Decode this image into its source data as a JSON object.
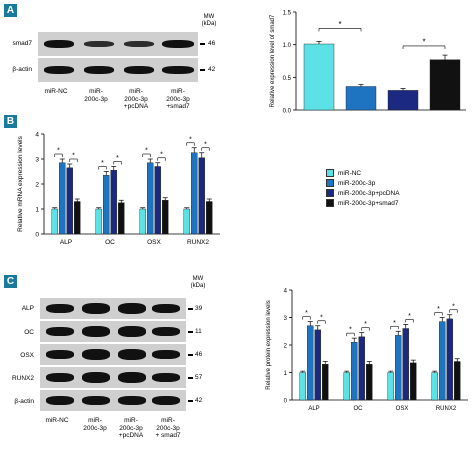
{
  "panels": {
    "a": "A",
    "b": "B",
    "c": "C"
  },
  "blot_a": {
    "mw_header": "MW\n(kDa)",
    "rows": [
      {
        "name": "smad7",
        "mw": "46"
      },
      {
        "name": "β-actin",
        "mw": "42"
      }
    ],
    "lanes": [
      "miR-NC",
      "miR-\n200c-3p",
      "miR-\n200c-3p\n+pcDNA",
      "miR-\n200c-3p\n+smad7"
    ]
  },
  "blot_c": {
    "mw_header": "MW\n(kDa)",
    "rows": [
      {
        "name": "ALP",
        "mw": "39"
      },
      {
        "name": "OC",
        "mw": "11"
      },
      {
        "name": "OSX",
        "mw": "46"
      },
      {
        "name": "RUNX2",
        "mw": "57"
      },
      {
        "name": "β-actin",
        "mw": "42"
      }
    ],
    "lanes": [
      "miR-NC",
      "miR-\n200c-3p",
      "miR-\n200c-3p\n+pcDNA",
      "miR-\n200c-3p\n+ smad7"
    ]
  },
  "colors": {
    "miR-NC": "#5ce1e6",
    "miR-200c-3p": "#1e74c0",
    "miR-200c-3p+pcDNA": "#1b2a80",
    "miR-200c-3p+smad7": "#111111"
  },
  "legend": [
    "miR-NC",
    "miR-200c-3p",
    "miR-200c-3p+pcDNA",
    "miR-200c-3p+smad7"
  ],
  "chart_data": [
    {
      "type": "bar",
      "ylabel": "Relative expression level of smad7",
      "ylim": [
        0,
        1.5
      ],
      "yticks": [
        "0.0",
        "0.5",
        "1.0",
        "1.5"
      ],
      "series": [
        {
          "name": "miR-NC",
          "values": [
            1.01
          ],
          "err": [
            0.04
          ]
        },
        {
          "name": "miR-200c-3p",
          "values": [
            0.36
          ],
          "err": [
            0.03
          ]
        },
        {
          "name": "miR-200c-3p+pcDNA",
          "values": [
            0.3
          ],
          "err": [
            0.03
          ]
        },
        {
          "name": "miR-200c-3p+smad7",
          "values": [
            0.77
          ],
          "err": [
            0.07
          ]
        }
      ],
      "significance": [
        [
          "1",
          "2",
          "*"
        ],
        [
          "3",
          "4",
          "*"
        ]
      ]
    },
    {
      "type": "bar",
      "ylabel": "Relative mRNA expression levels",
      "categories": [
        "ALP",
        "OC",
        "OSX",
        "RUNX2"
      ],
      "ylim": [
        0,
        4
      ],
      "yticks": [
        "0",
        "1",
        "2",
        "3",
        "4"
      ],
      "series": [
        {
          "name": "miR-NC",
          "values": [
            1.0,
            1.0,
            1.0,
            1.0
          ],
          "err": [
            0.05,
            0.05,
            0.05,
            0.05
          ]
        },
        {
          "name": "miR-200c-3p",
          "values": [
            2.85,
            2.35,
            2.85,
            3.25
          ],
          "err": [
            0.15,
            0.15,
            0.15,
            0.2
          ]
        },
        {
          "name": "miR-200c-3p+pcDNA",
          "values": [
            2.65,
            2.55,
            2.7,
            3.05
          ],
          "err": [
            0.15,
            0.15,
            0.15,
            0.2
          ]
        },
        {
          "name": "miR-200c-3p+smad7",
          "values": [
            1.3,
            1.25,
            1.35,
            1.3
          ],
          "err": [
            0.1,
            0.1,
            0.1,
            0.1
          ]
        }
      ],
      "significance_label": "*"
    },
    {
      "type": "bar",
      "ylabel": "Relative protein expression levels",
      "categories": [
        "ALP",
        "OC",
        "OSX",
        "RUNX2"
      ],
      "ylim": [
        0,
        4
      ],
      "yticks": [
        "0",
        "1",
        "2",
        "3",
        "4"
      ],
      "series": [
        {
          "name": "miR-NC",
          "values": [
            1.0,
            1.0,
            1.0,
            1.0
          ],
          "err": [
            0.05,
            0.05,
            0.05,
            0.05
          ]
        },
        {
          "name": "miR-200c-3p",
          "values": [
            2.7,
            2.1,
            2.35,
            2.85
          ],
          "err": [
            0.15,
            0.15,
            0.15,
            0.15
          ]
        },
        {
          "name": "miR-200c-3p+pcDNA",
          "values": [
            2.55,
            2.3,
            2.6,
            2.95
          ],
          "err": [
            0.15,
            0.15,
            0.15,
            0.15
          ]
        },
        {
          "name": "miR-200c-3p+smad7",
          "values": [
            1.3,
            1.3,
            1.35,
            1.4
          ],
          "err": [
            0.1,
            0.1,
            0.1,
            0.1
          ]
        }
      ],
      "significance_label": "*"
    }
  ]
}
